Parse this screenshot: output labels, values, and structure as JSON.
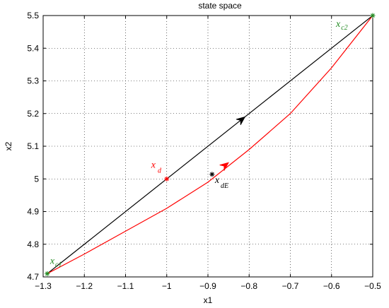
{
  "chart_data": {
    "type": "line",
    "title": "state space",
    "xlabel": "x1",
    "ylabel": "x2",
    "xlim": [
      -1.3,
      -0.5
    ],
    "ylim": [
      4.7,
      5.5
    ],
    "grid": true,
    "xticks": [
      -1.3,
      -1.2,
      -1.1,
      -1.0,
      -0.9,
      -0.8,
      -0.7,
      -0.6,
      -0.5
    ],
    "yticks": [
      4.7,
      4.8,
      4.9,
      5.0,
      5.1,
      5.2,
      5.3,
      5.4,
      5.5
    ],
    "xtick_labels": [
      "−1.3",
      "−1.2",
      "−1.1",
      "−1",
      "−0.9",
      "−0.8",
      "−0.7",
      "−0.6",
      "−0.5"
    ],
    "ytick_labels": [
      "4.7",
      "4.8",
      "4.9",
      "5",
      "5.1",
      "5.2",
      "5.3",
      "5.4",
      "5.5"
    ],
    "series": [
      {
        "color": "#000000",
        "x": [
          -0.5,
          -1.29
        ],
        "y": [
          5.5,
          4.71
        ],
        "arrow": {
          "x": -0.81,
          "y": 5.19,
          "direction": "backward"
        }
      },
      {
        "color": "#ff0000",
        "x": [
          -1.29,
          -1.2,
          -1.1,
          -1.0,
          -0.9,
          -0.8,
          -0.7,
          -0.6,
          -0.5
        ],
        "y": [
          4.71,
          4.77,
          4.84,
          4.91,
          4.99,
          5.09,
          5.2,
          5.34,
          5.5
        ],
        "arrow": {
          "x": -0.85,
          "y": 5.05,
          "direction": "forward"
        }
      }
    ],
    "points": [
      {
        "x": -1.29,
        "y": 4.71,
        "color": "#228b22",
        "label": "x",
        "sub": "c1"
      },
      {
        "x": -0.5,
        "y": 5.5,
        "color": "#228b22",
        "label": "x",
        "sub": "c2"
      },
      {
        "x": -1.0,
        "y": 5.0,
        "color": "#ff0000",
        "label": "x",
        "sub": "d"
      },
      {
        "x": -0.89,
        "y": 5.014,
        "color": "#000000",
        "label": "x",
        "sub": "dE"
      }
    ]
  }
}
